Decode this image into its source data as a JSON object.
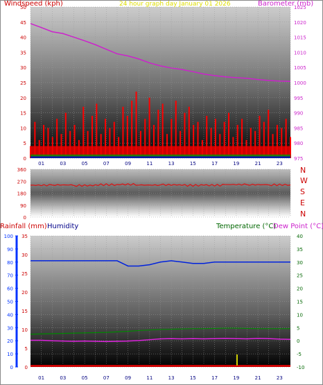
{
  "header": {
    "left_title": "Windspeed (kph)",
    "center_title": "24 hour graph day   January 01 2026",
    "right_title": "Barometer (mb)"
  },
  "colors": {
    "wind_left": "#cc0000",
    "center": "#e8e800",
    "baro": "#cc22cc",
    "rain": "#cc0000",
    "humidity": "#000088",
    "temp": "#006600",
    "dew": "#cc22cc",
    "rain_axis": "#0033ff",
    "humidity_series": "#0022dd",
    "dew_series": "#dd22dd",
    "temp_series": "#008800"
  },
  "compass": [
    "N",
    "W",
    "S",
    "E",
    "N"
  ],
  "bottom_titles": {
    "rainfall": "Rainfall (mm)",
    "humidity": "Humidity",
    "temperature": "Temperature (°C)",
    "dewpoint": "Dew Point (°C)"
  },
  "chart_data": [
    {
      "type": "line",
      "panel": "wind-baro",
      "x": [
        0,
        1,
        2,
        3,
        4,
        5,
        6,
        7,
        8,
        9,
        10,
        11,
        12,
        13,
        14,
        15,
        16,
        17,
        18,
        19,
        20,
        21,
        22,
        23,
        24
      ],
      "xticks": [
        "01",
        "03",
        "05",
        "07",
        "09",
        "11",
        "13",
        "15",
        "17",
        "19",
        "21",
        "23"
      ],
      "left_axis": {
        "label": "Windspeed (kph)",
        "ylim": [
          0,
          50
        ],
        "ticks": [
          0,
          5,
          10,
          15,
          20,
          25,
          30,
          35,
          40,
          45,
          50
        ]
      },
      "right_axis": {
        "label": "Barometer (mb)",
        "ylim": [
          975,
          1025
        ],
        "ticks": [
          975,
          980,
          985,
          990,
          995,
          1000,
          1005,
          1010,
          1015,
          1020,
          1025
        ]
      },
      "series": [
        {
          "name": "Barometer (mb)",
          "axis": "right",
          "values": [
            1019.5,
            1018.2,
            1016.8,
            1016.2,
            1015.0,
            1013.8,
            1012.5,
            1011.0,
            1009.5,
            1008.8,
            1007.8,
            1006.5,
            1005.5,
            1004.8,
            1004.3,
            1003.6,
            1002.8,
            1002.3,
            1001.9,
            1001.6,
            1001.4,
            1001.0,
            1000.7,
            1000.5,
            1000.4
          ]
        },
        {
          "name": "Windspeed (kph)",
          "axis": "left",
          "gust_bars": [
            4,
            12,
            6,
            11,
            10,
            7,
            13,
            8,
            15,
            9,
            11,
            6,
            17,
            9,
            14,
            18,
            8,
            13,
            10,
            12,
            7,
            17,
            14,
            19,
            22,
            9,
            13,
            20,
            11,
            16,
            18,
            8,
            13,
            19,
            9,
            15,
            17,
            11,
            12,
            6,
            14,
            10,
            13,
            8,
            12,
            15,
            7,
            11,
            13,
            6,
            10,
            9,
            14,
            12,
            16,
            8,
            11,
            10,
            13,
            7
          ]
        }
      ]
    },
    {
      "type": "line",
      "panel": "wind-direction",
      "x": [
        0,
        2,
        4,
        6,
        8,
        10,
        12,
        14,
        16,
        18,
        20,
        22,
        24
      ],
      "ylim": [
        0,
        360
      ],
      "ticks": [
        0,
        90,
        180,
        270,
        360
      ],
      "series": [
        {
          "name": "Wind direction",
          "values": [
            240,
            242,
            238,
            244,
            246,
            241,
            243,
            239,
            240,
            245,
            244,
            243,
            242
          ]
        }
      ]
    },
    {
      "type": "line",
      "panel": "rain-humidity-temp",
      "x": [
        0,
        1,
        2,
        3,
        4,
        5,
        6,
        7,
        8,
        9,
        10,
        11,
        12,
        13,
        14,
        15,
        16,
        17,
        18,
        19,
        20,
        21,
        22,
        23,
        24
      ],
      "xticks": [
        "01",
        "03",
        "05",
        "07",
        "09",
        "11",
        "13",
        "15",
        "17",
        "19",
        "21",
        "23"
      ],
      "humidity_axis": {
        "ylim": [
          0,
          100
        ],
        "ticks": [
          0,
          10,
          20,
          30,
          40,
          50,
          60,
          70,
          80,
          90,
          100
        ]
      },
      "rain_axis": {
        "ylim": [
          0,
          35
        ],
        "ticks": [
          0,
          5,
          10,
          15,
          20,
          25,
          30,
          35
        ]
      },
      "temp_axis": {
        "ylim": [
          -10,
          40
        ],
        "ticks": [
          -10,
          -5,
          0,
          5,
          10,
          15,
          20,
          25,
          30,
          35,
          40
        ]
      },
      "series": [
        {
          "name": "Humidity",
          "axis": "humidity",
          "values": [
            81,
            81,
            81,
            81,
            81,
            81,
            81,
            81,
            81,
            77,
            77,
            78,
            80,
            81,
            80,
            79,
            79,
            80,
            80,
            80,
            80,
            80,
            80,
            80,
            80
          ]
        },
        {
          "name": "Temperature (°C)",
          "axis": "temp",
          "values": [
            2.5,
            2.6,
            2.7,
            2.8,
            2.9,
            3.0,
            3.1,
            3.2,
            3.4,
            3.6,
            3.9,
            4.1,
            4.3,
            4.4,
            4.5,
            4.6,
            4.6,
            4.7,
            4.8,
            4.8,
            4.7,
            4.6,
            4.6,
            4.6,
            4.6
          ]
        },
        {
          "name": "Dew Point (°C)",
          "axis": "temp",
          "values": [
            0.2,
            0.2,
            0.0,
            -0.1,
            -0.2,
            -0.1,
            -0.2,
            -0.3,
            -0.2,
            -0.1,
            0.1,
            0.4,
            0.7,
            0.8,
            0.7,
            0.8,
            0.7,
            0.8,
            0.9,
            0.8,
            0.7,
            0.9,
            0.8,
            0.6,
            0.5
          ]
        },
        {
          "name": "Rainfall (mm)",
          "axis": "rain",
          "values": [
            0,
            0,
            0,
            0,
            0,
            0,
            0,
            0,
            0,
            0,
            0,
            0,
            0,
            0,
            0,
            0,
            0,
            0,
            0,
            0,
            0,
            0,
            0,
            0,
            0
          ]
        }
      ]
    }
  ]
}
